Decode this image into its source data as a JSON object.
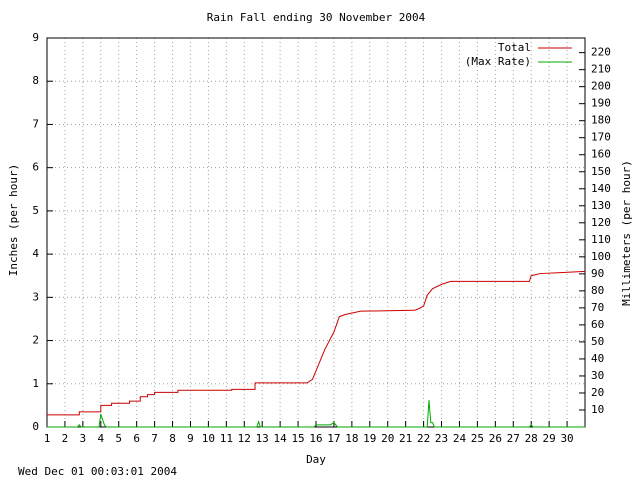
{
  "chart_data": {
    "type": "line",
    "title": "Rain Fall ending 30 November 2004",
    "xlabel": "Day",
    "ylabel": "Inches (per hour)",
    "y2label": "Millimeters (per hour)",
    "footer": "Wed Dec 01 00:03:01 2004",
    "xlim": [
      1,
      31
    ],
    "xticks": [
      1,
      2,
      3,
      4,
      5,
      6,
      7,
      8,
      9,
      10,
      11,
      12,
      13,
      14,
      15,
      16,
      17,
      18,
      19,
      20,
      21,
      22,
      23,
      24,
      25,
      26,
      27,
      28,
      29,
      30
    ],
    "ylim": [
      0,
      9
    ],
    "yticks": [
      0,
      1,
      2,
      3,
      4,
      5,
      6,
      7,
      8,
      9
    ],
    "y2lim": [
      0,
      228.6
    ],
    "y2ticks": [
      10,
      20,
      30,
      40,
      50,
      60,
      70,
      80,
      90,
      100,
      110,
      120,
      130,
      140,
      150,
      160,
      170,
      180,
      190,
      200,
      210,
      220
    ],
    "grid": true,
    "legend": "upper right",
    "series": [
      {
        "name": "Total",
        "color": "#cc0000",
        "x": [
          1,
          2.8,
          2.8,
          4.0,
          4.0,
          4.6,
          4.6,
          5.6,
          5.6,
          6.2,
          6.2,
          6.6,
          6.6,
          7.0,
          7.0,
          8.3,
          8.3,
          11.3,
          11.3,
          12.6,
          12.6,
          15.5,
          15.8,
          16.0,
          16.5,
          17.0,
          17.3,
          17.6,
          18.5,
          21.5,
          21.8,
          22.0,
          22.2,
          22.5,
          23.0,
          23.5,
          27.9,
          28.0,
          28.5,
          29.5,
          31
        ],
        "values": [
          0.28,
          0.28,
          0.35,
          0.35,
          0.5,
          0.5,
          0.55,
          0.55,
          0.6,
          0.6,
          0.7,
          0.7,
          0.75,
          0.75,
          0.8,
          0.8,
          0.85,
          0.85,
          0.87,
          0.87,
          1.02,
          1.02,
          1.1,
          1.3,
          1.8,
          2.2,
          2.55,
          2.6,
          2.68,
          2.7,
          2.75,
          2.8,
          3.05,
          3.2,
          3.3,
          3.37,
          3.37,
          3.5,
          3.55,
          3.57,
          3.6
        ]
      },
      {
        "name": "(Max Rate)",
        "color": "#00aa00",
        "x": [
          1,
          2.7,
          2.8,
          2.9,
          3.9,
          4.0,
          4.2,
          4.3,
          12.7,
          12.8,
          12.9,
          15.9,
          16.0,
          16.8,
          17.0,
          17.2,
          22.2,
          22.3,
          22.4,
          22.5,
          22.6,
          27.9,
          28.0,
          28.1,
          31
        ],
        "values": [
          0,
          0,
          0.05,
          0,
          0,
          0.3,
          0.05,
          0,
          0,
          0.12,
          0,
          0,
          0.05,
          0.05,
          0.1,
          0,
          0,
          0.62,
          0.1,
          0.1,
          0,
          0,
          0.05,
          0,
          0
        ]
      }
    ]
  }
}
